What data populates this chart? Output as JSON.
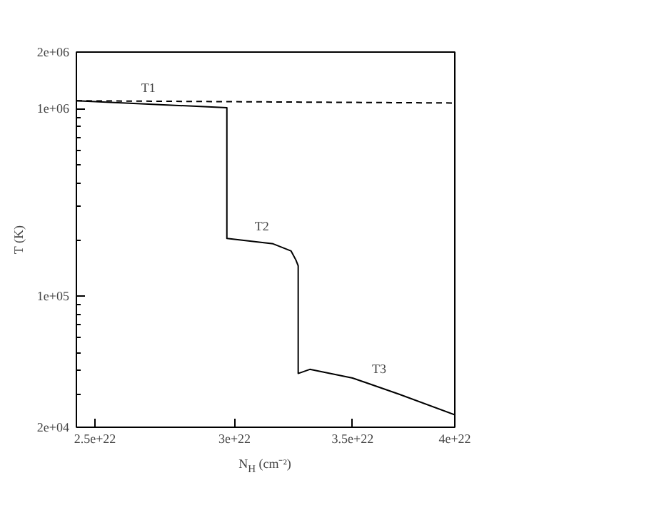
{
  "chart_data": {
    "type": "line",
    "xlabel": "N$_{H}$ (cm⁻²)",
    "ylabel": "T (K)",
    "log": "xy",
    "grid": false,
    "marker": "none",
    "xlim": [
      2.44e+22,
      4e+22
    ],
    "ylim": [
      20000.0,
      2000000.0
    ],
    "xticks": [
      2.5e+22,
      3e+22,
      3.5e+22,
      4e+22
    ],
    "yticks": [
      {
        "value": 20000.0,
        "label": "2e+04"
      },
      {
        "value": 100000.0,
        "label": "1e+05"
      },
      {
        "value": 1000000.0,
        "label": "1e+06"
      },
      {
        "value": 2000000.0,
        "label": "2e+06"
      }
    ],
    "series": [
      {
        "color": "#000000",
        "line_style": "solid",
        "x": [
          2.44e+22,
          2.97e+22,
          2.97e+22,
          3.155e+22,
          3.23e+22,
          3.25e+22,
          3.26e+22,
          3.26e+22,
          3.31e+22,
          3.5e+22,
          3.72e+22,
          4e+22
        ],
        "values": [
          1100000.0,
          1010000.0,
          203000.0,
          190000.0,
          174000.0,
          156000.0,
          145000.0,
          38700.0,
          40700.0,
          36600.0,
          30000.0,
          23300.0
        ]
      },
      {
        "color": "#000000",
        "line_style": "dashed",
        "x": [
          2.44e+22,
          4e+22
        ],
        "values": [
          1100000.0,
          1070000.0
        ]
      }
    ],
    "annotations": [
      "T1",
      "T2",
      "T3"
    ]
  }
}
